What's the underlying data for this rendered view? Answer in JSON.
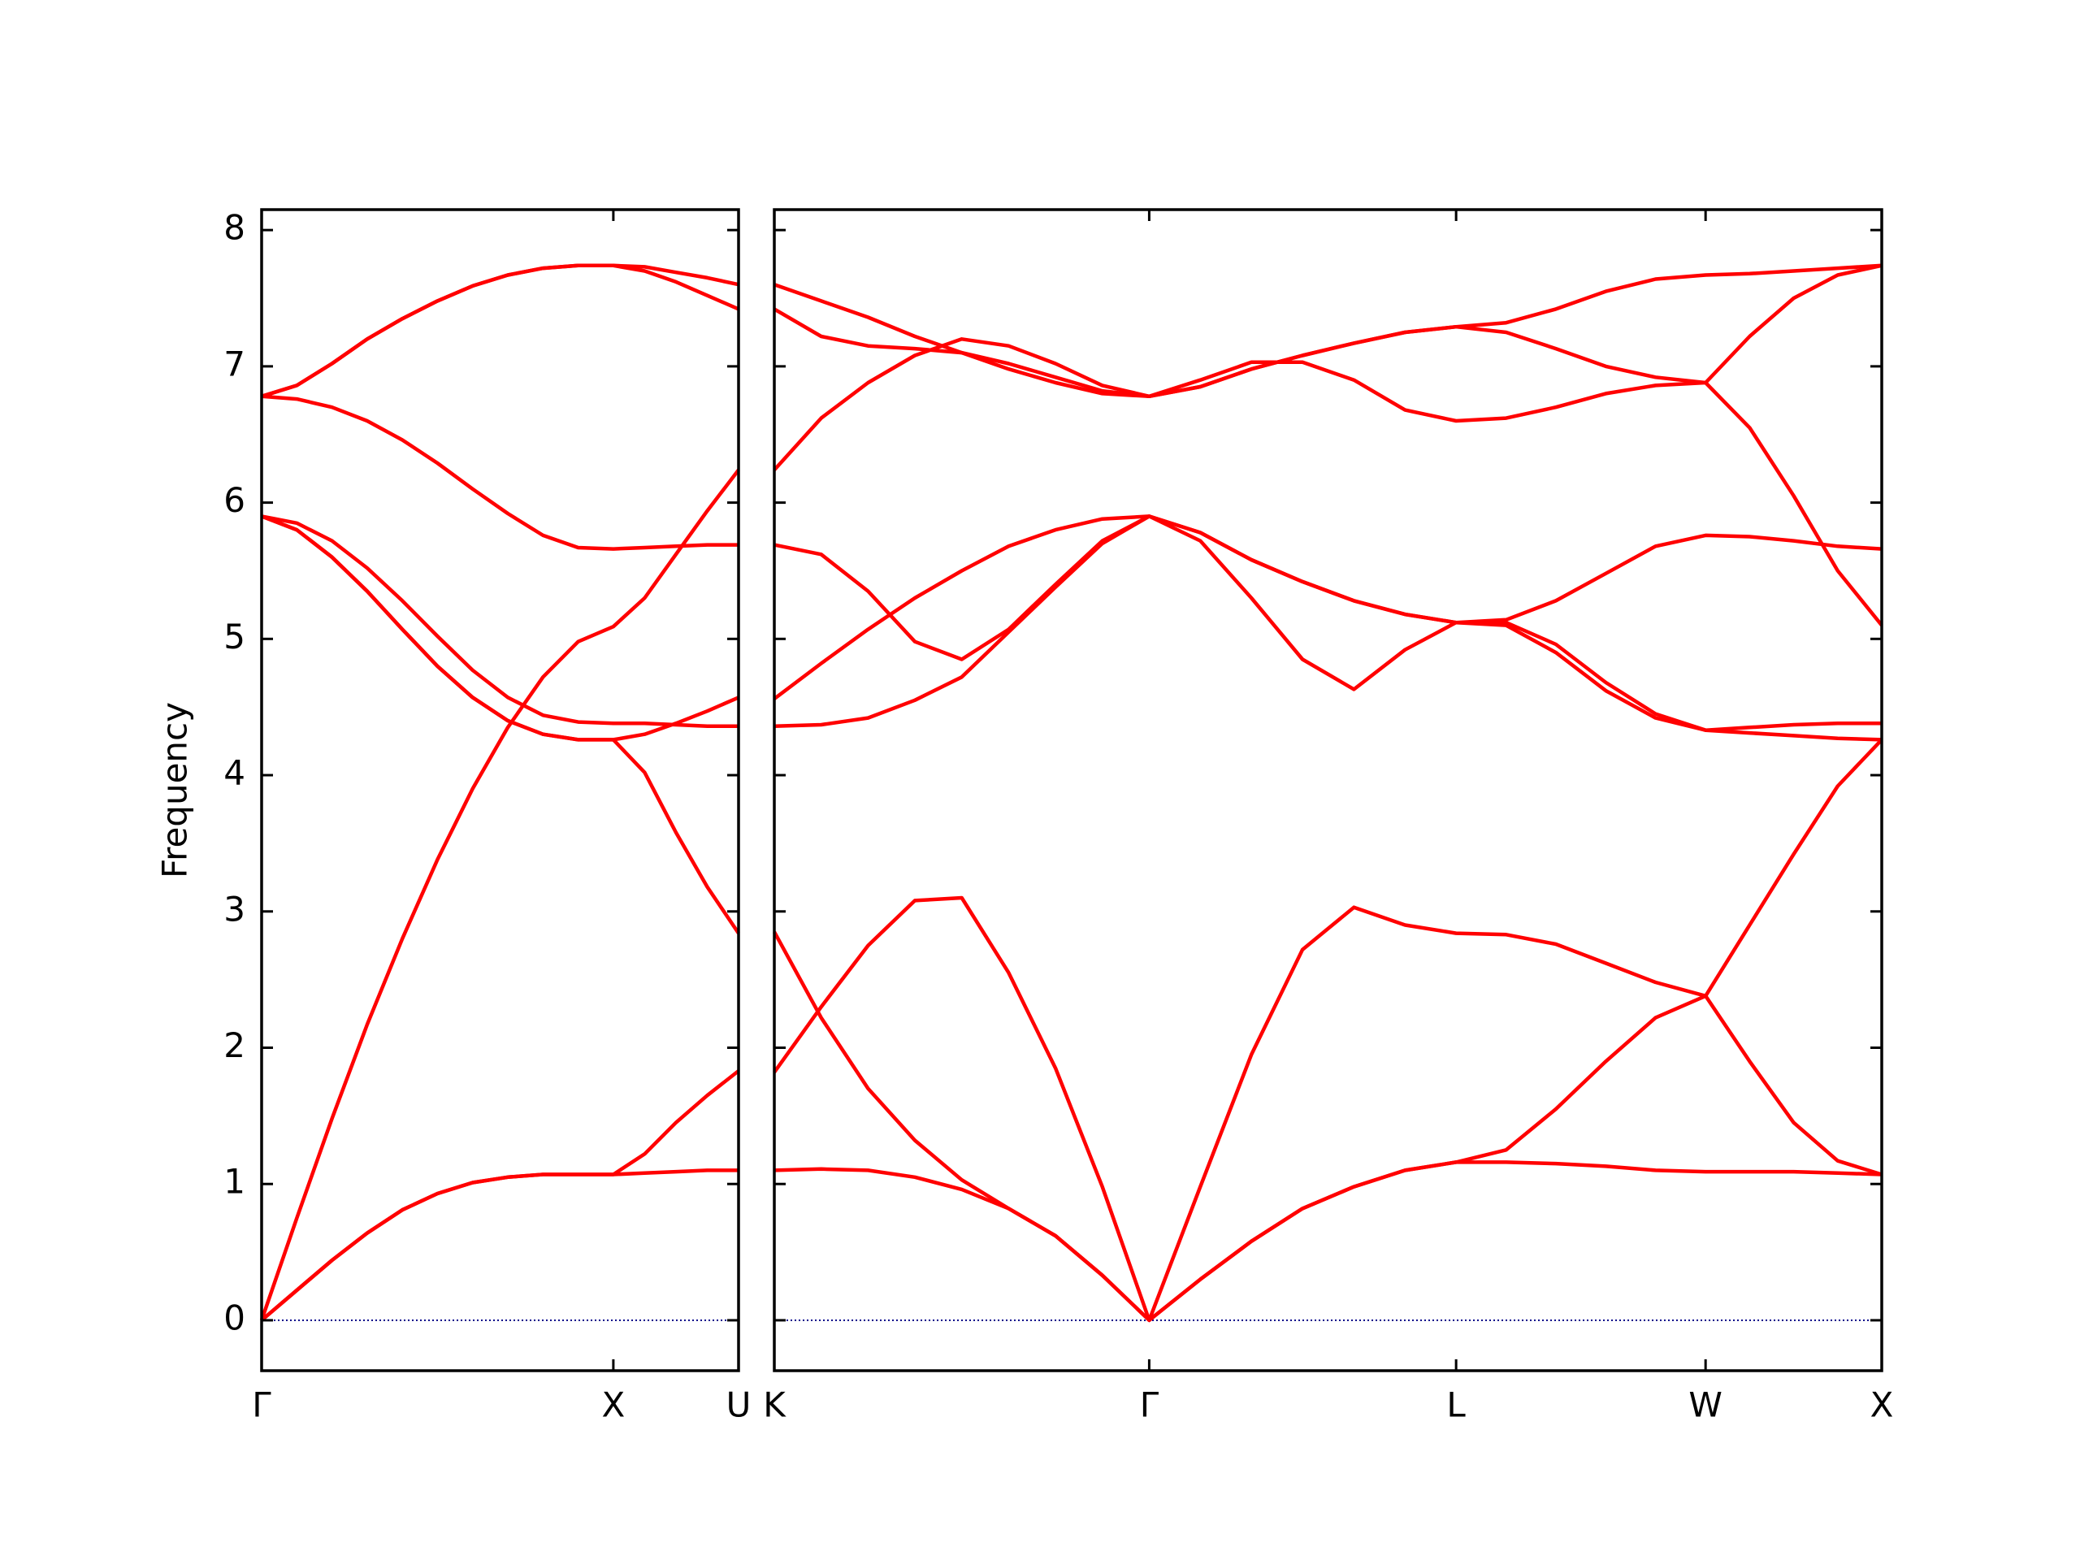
{
  "chart_data": [
    {
      "type": "line",
      "ylabel": "Frequency",
      "show_ytick_labels": true,
      "color": "#ff0000",
      "hline": 0,
      "hline_color": "#00008b",
      "xlim": [
        0,
        1.356
      ],
      "ylim": [
        -0.37,
        8.15
      ],
      "xticks": [
        {
          "value": 0,
          "label": "Γ"
        },
        {
          "value": 1,
          "label": "X"
        },
        {
          "value": 1.356,
          "label": "U"
        }
      ],
      "yticks": [
        0,
        1,
        2,
        3,
        4,
        5,
        6,
        7,
        8
      ],
      "x": [
        0,
        0.1,
        0.2,
        0.3,
        0.4,
        0.5,
        0.6,
        0.7,
        0.8,
        0.9,
        1,
        1.089,
        1.178,
        1.267,
        1.356
      ],
      "series": [
        {
          "values": [
            0,
            0.22,
            0.44,
            0.64,
            0.81,
            0.93,
            1.01,
            1.05,
            1.07,
            1.07,
            1.07,
            1.08,
            1.09,
            1.1,
            1.1
          ]
        },
        {
          "values": [
            0,
            0.22,
            0.44,
            0.64,
            0.81,
            0.93,
            1.01,
            1.05,
            1.07,
            1.07,
            1.07,
            1.22,
            1.45,
            1.65,
            1.83
          ]
        },
        {
          "values": [
            0,
            0.75,
            1.48,
            2.17,
            2.8,
            3.38,
            3.9,
            4.35,
            4.72,
            4.98,
            5.09,
            5.3,
            5.62,
            5.94,
            6.24
          ]
        },
        {
          "values": [
            5.9,
            5.8,
            5.6,
            5.35,
            5.07,
            4.8,
            4.57,
            4.4,
            4.3,
            4.26,
            4.26,
            4.02,
            3.58,
            3.18,
            2.84
          ]
        },
        {
          "values": [
            5.9,
            5.8,
            5.6,
            5.35,
            5.07,
            4.8,
            4.57,
            4.4,
            4.3,
            4.26,
            4.26,
            4.3,
            4.38,
            4.47,
            4.57
          ]
        },
        {
          "values": [
            5.9,
            5.85,
            5.72,
            5.52,
            5.28,
            5.02,
            4.77,
            4.57,
            4.44,
            4.39,
            4.38,
            4.38,
            4.37,
            4.36,
            4.36
          ]
        },
        {
          "values": [
            6.78,
            6.76,
            6.7,
            6.6,
            6.46,
            6.29,
            6.1,
            5.92,
            5.76,
            5.67,
            5.66,
            5.67,
            5.68,
            5.69,
            5.69
          ]
        },
        {
          "values": [
            6.78,
            6.86,
            7.02,
            7.2,
            7.35,
            7.48,
            7.59,
            7.67,
            7.72,
            7.74,
            7.74,
            7.73,
            7.69,
            7.65,
            7.6
          ]
        },
        {
          "values": [
            6.78,
            6.86,
            7.02,
            7.2,
            7.35,
            7.48,
            7.59,
            7.67,
            7.72,
            7.74,
            7.74,
            7.7,
            7.62,
            7.52,
            7.42
          ]
        }
      ]
    },
    {
      "type": "line",
      "show_ytick_labels": false,
      "color": "#ff0000",
      "hline": 0,
      "hline_color": "#00008b",
      "xlim": [
        1.356,
        4.499
      ],
      "ylim": [
        -0.37,
        8.15
      ],
      "xticks": [
        {
          "value": 1.356,
          "label": "K"
        },
        {
          "value": 2.42,
          "label": "Γ"
        },
        {
          "value": 3.291,
          "label": "L"
        },
        {
          "value": 3.999,
          "label": "W"
        },
        {
          "value": 4.499,
          "label": "X"
        }
      ],
      "yticks": [
        0,
        1,
        2,
        3,
        4,
        5,
        6,
        7,
        8
      ],
      "x": [
        1.356,
        1.489,
        1.622,
        1.755,
        1.888,
        2.021,
        2.154,
        2.287,
        2.42,
        2.565,
        2.71,
        2.855,
        3.001,
        3.146,
        3.291,
        3.433,
        3.574,
        3.716,
        3.857,
        3.999,
        4.124,
        4.249,
        4.374,
        4.499
      ],
      "series": [
        {
          "values": [
            1.1,
            1.11,
            1.1,
            1.05,
            0.96,
            0.82,
            0.62,
            0.33,
            0,
            0.3,
            0.58,
            0.82,
            0.98,
            1.1,
            1.16,
            1.16,
            1.15,
            1.13,
            1.1,
            1.09,
            1.09,
            1.09,
            1.08,
            1.07
          ]
        },
        {
          "values": [
            1.82,
            2.3,
            2.75,
            3.08,
            3.1,
            2.55,
            1.85,
            0.98,
            0,
            0.98,
            1.95,
            2.72,
            3.03,
            2.9,
            2.84,
            2.83,
            2.76,
            2.62,
            2.48,
            2.38,
            1.9,
            1.45,
            1.17,
            1.07
          ]
        },
        {
          "values": [
            2.85,
            2.22,
            1.7,
            1.32,
            1.03,
            0.82,
            0.62,
            0.33,
            0,
            0.3,
            0.58,
            0.82,
            0.98,
            1.1,
            1.16,
            1.25,
            1.55,
            1.9,
            2.22,
            2.38,
            2.9,
            3.42,
            3.92,
            4.26
          ]
        },
        {
          "values": [
            4.36,
            4.37,
            4.42,
            4.55,
            4.72,
            5.05,
            5.38,
            5.7,
            5.9,
            5.78,
            5.58,
            5.42,
            5.28,
            5.18,
            5.12,
            5.1,
            4.9,
            4.62,
            4.42,
            4.33,
            4.35,
            4.37,
            4.38,
            4.38
          ]
        },
        {
          "values": [
            4.56,
            4.82,
            5.07,
            5.3,
            5.5,
            5.68,
            5.8,
            5.88,
            5.9,
            5.78,
            5.58,
            5.42,
            5.28,
            5.18,
            5.12,
            5.14,
            5.28,
            5.48,
            5.68,
            5.76,
            5.75,
            5.72,
            5.68,
            5.66
          ]
        },
        {
          "values": [
            5.69,
            5.62,
            5.35,
            4.98,
            4.85,
            5.07,
            5.4,
            5.72,
            5.9,
            5.72,
            5.3,
            4.85,
            4.63,
            4.92,
            5.12,
            5.12,
            4.96,
            4.68,
            4.45,
            4.33,
            4.31,
            4.29,
            4.27,
            4.26
          ]
        },
        {
          "values": [
            7.6,
            7.48,
            7.36,
            7.22,
            7.1,
            6.98,
            6.88,
            6.8,
            6.78,
            6.85,
            6.98,
            7.08,
            7.17,
            7.25,
            7.29,
            7.32,
            7.42,
            7.55,
            7.64,
            7.67,
            7.68,
            7.7,
            7.72,
            7.74
          ]
        },
        {
          "values": [
            7.42,
            7.22,
            7.15,
            7.13,
            7.1,
            7.02,
            6.92,
            6.82,
            6.78,
            6.85,
            6.98,
            7.08,
            7.17,
            7.25,
            7.29,
            7.25,
            7.13,
            7.0,
            6.92,
            6.88,
            7.22,
            7.5,
            7.67,
            7.74
          ]
        },
        {
          "values": [
            6.24,
            6.62,
            6.88,
            7.08,
            7.2,
            7.15,
            7.02,
            6.86,
            6.78,
            6.9,
            7.03,
            7.03,
            6.9,
            6.68,
            6.6,
            6.62,
            6.7,
            6.8,
            6.86,
            6.88,
            6.55,
            6.05,
            5.5,
            5.1
          ]
        }
      ]
    }
  ]
}
